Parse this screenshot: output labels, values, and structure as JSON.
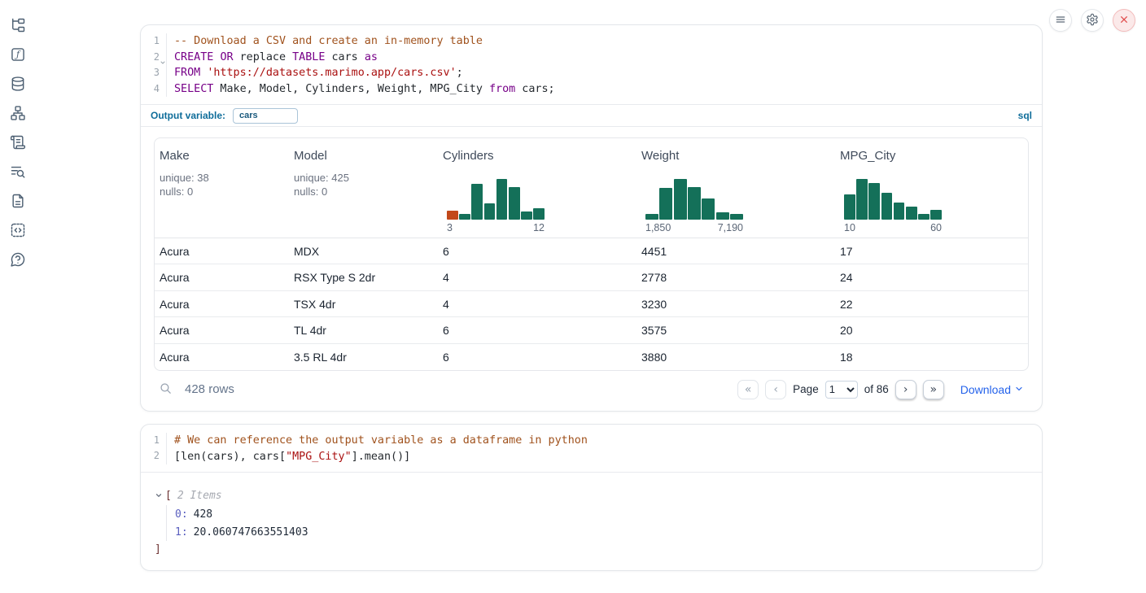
{
  "colors": {
    "histogram_green": "#147059",
    "histogram_orange": "#c2491a",
    "keyword_purple": "#770088",
    "string_red": "#aa1111",
    "comment_brown": "#a0521d",
    "accent_blue": "#0f6d9a",
    "link_blue": "#2563eb"
  },
  "sidebar": {
    "items": [
      {
        "name": "file-explorer",
        "icon": "file-tree-icon"
      },
      {
        "name": "variables",
        "icon": "function-square-icon"
      },
      {
        "name": "datasources",
        "icon": "database-icon"
      },
      {
        "name": "dependency-graph",
        "icon": "network-icon"
      },
      {
        "name": "outline",
        "icon": "scroll-icon"
      },
      {
        "name": "logs",
        "icon": "search-list-icon"
      },
      {
        "name": "documentation",
        "icon": "file-text-icon"
      },
      {
        "name": "snippets",
        "icon": "code-brackets-icon"
      },
      {
        "name": "help",
        "icon": "help-bubble-icon"
      }
    ]
  },
  "topbar": {
    "buttons": [
      {
        "name": "menu",
        "icon": "hamburger-icon"
      },
      {
        "name": "settings",
        "icon": "gear-icon"
      },
      {
        "name": "shutdown",
        "icon": "close-icon"
      }
    ]
  },
  "sql_cell": {
    "language_badge": "sql",
    "output_variable_label": "Output variable:",
    "output_variable_value": "cars",
    "lines": [
      {
        "num": "1",
        "tokens": [
          {
            "c": "com",
            "v": "-- Download a CSV and create an in-memory table"
          }
        ]
      },
      {
        "num": "2",
        "tokens": [
          {
            "c": "kw",
            "v": "CREATE"
          },
          {
            "c": "pl",
            "v": " "
          },
          {
            "c": "kw",
            "v": "OR"
          },
          {
            "c": "pl",
            "v": " replace "
          },
          {
            "c": "kw",
            "v": "TABLE"
          },
          {
            "c": "pl",
            "v": " cars "
          },
          {
            "c": "kw",
            "v": "as"
          }
        ]
      },
      {
        "num": "3",
        "tokens": [
          {
            "c": "kw",
            "v": "FROM"
          },
          {
            "c": "pl",
            "v": " "
          },
          {
            "c": "str",
            "v": "'https://datasets.marimo.app/cars.csv'"
          },
          {
            "c": "pl",
            "v": ";"
          }
        ]
      },
      {
        "num": "4",
        "tokens": [
          {
            "c": "kw",
            "v": "SELECT"
          },
          {
            "c": "pl",
            "v": " Make, Model, Cylinders, Weight, MPG_City "
          },
          {
            "c": "kw",
            "v": "from"
          },
          {
            "c": "pl",
            "v": " cars;"
          }
        ]
      }
    ]
  },
  "table": {
    "columns": [
      {
        "label": "Make",
        "stats": [
          "unique: 38",
          "nulls: 0"
        ]
      },
      {
        "label": "Model",
        "stats": [
          "unique: 425",
          "nulls: 0"
        ]
      },
      {
        "label": "Cylinders"
      },
      {
        "label": "Weight"
      },
      {
        "label": "MPG_City"
      }
    ],
    "rows": [
      [
        "Acura",
        "MDX",
        "6",
        "4451",
        "17"
      ],
      [
        "Acura",
        "RSX Type S 2dr",
        "4",
        "2778",
        "24"
      ],
      [
        "Acura",
        "TSX 4dr",
        "4",
        "3230",
        "22"
      ],
      [
        "Acura",
        "TL 4dr",
        "6",
        "3575",
        "20"
      ],
      [
        "Acura",
        "3.5 RL 4dr",
        "6",
        "3880",
        "18"
      ]
    ],
    "footer": {
      "row_count": "428 rows",
      "page_label": "Page",
      "page_value": "1",
      "total_pages_label": "of 86",
      "download_label": "Download",
      "pager_icons": {
        "first": "«",
        "prev": "‹",
        "next": "›",
        "last": "»"
      }
    }
  },
  "chart_data": [
    {
      "type": "histogram",
      "column": "Cylinders",
      "x_range_labels": [
        "3",
        "12"
      ],
      "bar_heights_relative": [
        0.21,
        0.13,
        0.88,
        0.4,
        1.0,
        0.8,
        0.2,
        0.28
      ],
      "highlight_first_bar": true,
      "legend": "off",
      "note": "column summary histogram, x from 3 to 12"
    },
    {
      "type": "histogram",
      "column": "Weight",
      "x_range_labels": [
        "1,850",
        "7,190"
      ],
      "bar_heights_relative": [
        0.13,
        0.78,
        1.0,
        0.8,
        0.52,
        0.18,
        0.13
      ],
      "highlight_first_bar": false,
      "legend": "off",
      "note": "column summary histogram, x from 1,850 to 7,190"
    },
    {
      "type": "histogram",
      "column": "MPG_City",
      "x_range_labels": [
        "10",
        "60"
      ],
      "bar_heights_relative": [
        0.62,
        1.0,
        0.9,
        0.66,
        0.42,
        0.31,
        0.14,
        0.23
      ],
      "highlight_first_bar": false,
      "legend": "off",
      "note": "column summary histogram, x from 10 to 60"
    }
  ],
  "python_cell": {
    "lines": [
      {
        "num": "1",
        "tokens": [
          {
            "c": "com",
            "v": "# We can reference the output variable as a dataframe in python"
          }
        ]
      },
      {
        "num": "2",
        "tokens": [
          {
            "c": "pl",
            "v": "[len(cars), cars["
          },
          {
            "c": "str",
            "v": "\"MPG_City\""
          },
          {
            "c": "pl",
            "v": "].mean()]"
          }
        ]
      }
    ],
    "output": {
      "bracket_open": "[",
      "items_count": "2 Items",
      "entries": [
        {
          "key": "0:",
          "value": "428"
        },
        {
          "key": "1:",
          "value": "20.060747663551403"
        }
      ],
      "bracket_close": "]"
    }
  }
}
